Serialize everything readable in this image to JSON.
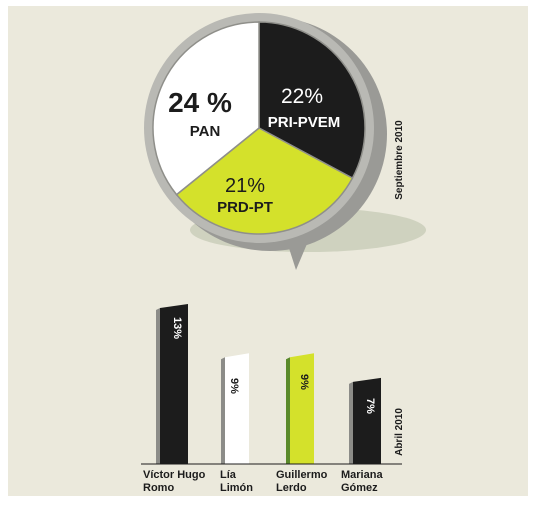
{
  "colors": {
    "background": "#ebe9dc",
    "black": "#1c1c1c",
    "white": "#ffffff",
    "lime": "#d4e12b",
    "gray": "#b9b9b4",
    "shadow": "#cfd2bf"
  },
  "chart_data": [
    {
      "type": "pie",
      "date_label": "Septiembre 2010",
      "slices": [
        {
          "label": "PRI-PVEM",
          "value": 22,
          "value_label": "22%",
          "color": "#1c1c1c"
        },
        {
          "label": "PRD-PT",
          "value": 21,
          "value_label": "21%",
          "color": "#d4e12b"
        },
        {
          "label": "PAN",
          "value": 24,
          "value_label": "24 %",
          "color": "#ffffff"
        }
      ]
    },
    {
      "type": "bar",
      "date_label": "Abril 2010",
      "categories": [
        [
          "Víctor Hugo",
          "Romo"
        ],
        [
          "Lía",
          "Limón"
        ],
        [
          "Guillermo",
          "Lerdo"
        ],
        [
          "Mariana",
          "Gómez"
        ]
      ],
      "values": [
        13,
        9,
        9,
        7
      ],
      "value_labels": [
        "13%",
        "9%",
        "9%",
        "7%"
      ],
      "colors": [
        "#1c1c1c",
        "#ffffff",
        "#d4e12b",
        "#1c1c1c"
      ],
      "ylim": [
        0,
        13
      ]
    }
  ]
}
